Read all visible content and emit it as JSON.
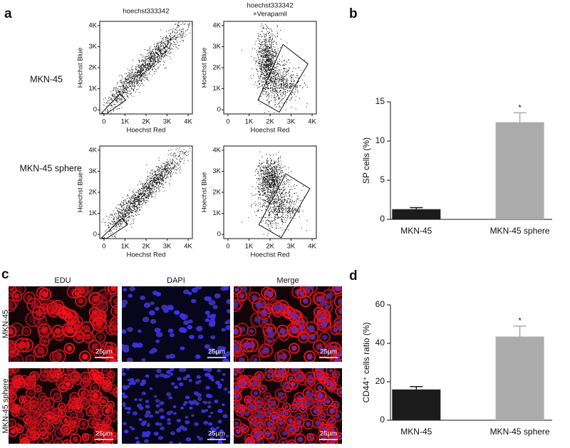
{
  "panel_labels": [
    "a",
    "b",
    "c",
    "d"
  ],
  "flow": {
    "row_labels": [
      "MKN-45",
      "MKN-45 sphere"
    ],
    "column_titles": [
      [
        "hoechst333342"
      ],
      [
        "hoechst333342",
        "+Verapamil"
      ]
    ]
  },
  "micrograph": {
    "column_titles": [
      "EDU",
      "DAPI",
      "Merge"
    ],
    "row_labels": [
      "MKN-45",
      "MKN-45 sphere"
    ],
    "scale_bar": "25µm"
  },
  "chart_data": [
    {
      "type": "scatter",
      "xlabel": "Hoechst Red",
      "ylabel": "Hoechst Blue",
      "xlim": [
        -200,
        4200
      ],
      "ylim": [
        -200,
        4200
      ],
      "xticks": [
        0,
        {
          "value": 1000,
          "label": "1K"
        },
        {
          "value": 2000,
          "label": "2K"
        },
        {
          "value": 3000,
          "label": "3K"
        },
        {
          "value": 4000,
          "label": "4K"
        }
      ],
      "yticks": [
        0,
        {
          "value": 1000,
          "label": "1K"
        },
        {
          "value": 2000,
          "label": "2K"
        },
        {
          "value": 3000,
          "label": "3K"
        },
        {
          "value": 4000,
          "label": "4K"
        }
      ]
    },
    {
      "type": "scatter",
      "xlabel": "Hoechst Red",
      "ylabel": "Hoechst Blue",
      "xlim": [
        -200,
        4200
      ],
      "ylim": [
        -200,
        4200
      ],
      "xticks": [
        0,
        {
          "value": 1000,
          "label": "1K"
        },
        {
          "value": 2000,
          "label": "2K"
        },
        {
          "value": 3000,
          "label": "3K"
        },
        {
          "value": 4000,
          "label": "4K"
        }
      ],
      "yticks": [
        0,
        {
          "value": 1000,
          "label": "1K"
        },
        {
          "value": 2000,
          "label": "2K"
        },
        {
          "value": 3000,
          "label": "3K"
        },
        {
          "value": 4000,
          "label": "4K"
        }
      ],
      "annotation": "1.23%"
    },
    {
      "type": "scatter",
      "xlabel": "Hoechst Red",
      "ylabel": "Hoechst Blue",
      "xlim": [
        -200,
        4200
      ],
      "ylim": [
        -200,
        4200
      ],
      "xticks": [
        0,
        {
          "value": 1000,
          "label": "1K"
        },
        {
          "value": 2000,
          "label": "2K"
        },
        {
          "value": 3000,
          "label": "3K"
        },
        {
          "value": 4000,
          "label": "4K"
        }
      ],
      "yticks": [
        0,
        {
          "value": 1000,
          "label": "1K"
        },
        {
          "value": 2000,
          "label": "2K"
        },
        {
          "value": 3000,
          "label": "3K"
        },
        {
          "value": 4000,
          "label": "4K"
        }
      ]
    },
    {
      "type": "scatter",
      "xlabel": "Hoechst Red",
      "ylabel": "Hoechst Blue",
      "xlim": [
        -200,
        4200
      ],
      "ylim": [
        -200,
        4200
      ],
      "xticks": [
        0,
        {
          "value": 1000,
          "label": "1K"
        },
        {
          "value": 2000,
          "label": "2K"
        },
        {
          "value": 3000,
          "label": "3K"
        },
        {
          "value": 4000,
          "label": "4K"
        }
      ],
      "yticks": [
        0,
        {
          "value": 1000,
          "label": "1K"
        },
        {
          "value": 2000,
          "label": "2K"
        },
        {
          "value": 3000,
          "label": "3K"
        },
        {
          "value": 4000,
          "label": "4K"
        }
      ],
      "annotation": "12.34%"
    },
    {
      "type": "bar",
      "ylabel": "SP cells (%)",
      "categories": [
        "MKN-45",
        "MKN-45 sphere"
      ],
      "values": [
        1.3,
        12.4
      ],
      "errors": [
        0.2,
        1.2
      ],
      "colors": [
        "#1c1c1c",
        "#ababab"
      ],
      "annotations": [
        null,
        "*"
      ],
      "ylim": [
        0,
        15
      ],
      "yticks": [
        0,
        5,
        10,
        15
      ]
    },
    {
      "type": "bar",
      "ylabel": "CD44⁺ cells ratio (%)",
      "categories": [
        "MKN-45",
        "MKN-45 sphere"
      ],
      "values": [
        16,
        43.5
      ],
      "errors": [
        1.5,
        5.5
      ],
      "colors": [
        "#1c1c1c",
        "#ababab"
      ],
      "annotations": [
        null,
        "*"
      ],
      "ylim": [
        0,
        60
      ],
      "yticks": [
        0,
        20,
        40,
        60
      ]
    }
  ]
}
